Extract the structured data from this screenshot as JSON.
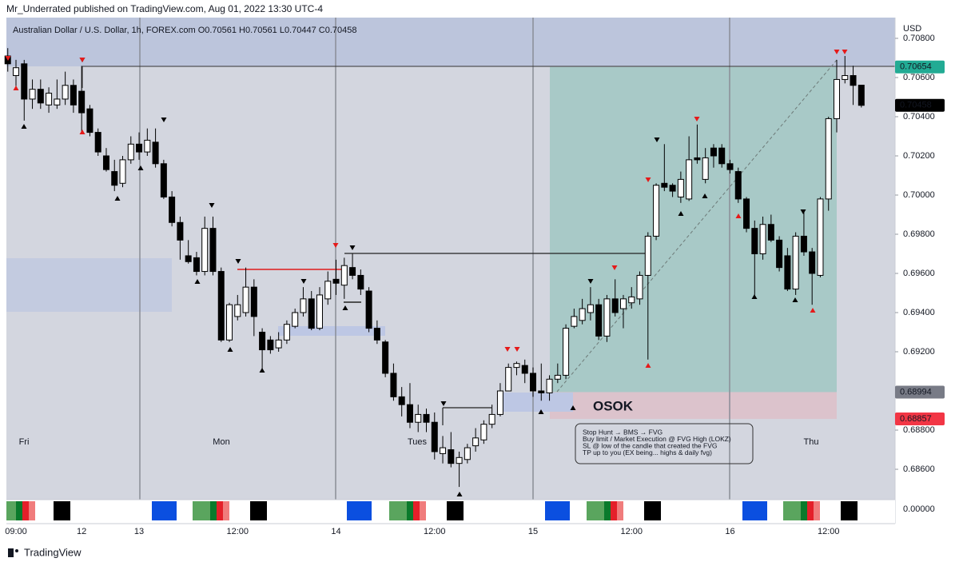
{
  "header": {
    "publisher": "Mr_Underrated published on TradingView.com, Aug 01, 2022 13:30 UTC-4"
  },
  "chart_data": {
    "type": "candlestick",
    "title": "Australian Dollar / U.S. Dollar, 1h, FOREX.com  O0.70561  H0.70561  L0.70447  C0.70458",
    "currency": "USD",
    "categories": [
      null,
      "09:00",
      null,
      null,
      null,
      null,
      null,
      null,
      null,
      "12",
      null,
      null,
      null,
      null,
      null,
      null,
      "13",
      null,
      null,
      null,
      null,
      null,
      null,
      null,
      null,
      null,
      null,
      null,
      "12:00",
      null,
      null,
      null,
      null,
      null,
      null,
      null,
      null,
      null,
      null,
      null,
      "14",
      null,
      null,
      null,
      null,
      null,
      null,
      null,
      null,
      null,
      null,
      null,
      "12:00",
      null,
      null,
      null,
      null,
      null,
      null,
      null,
      null,
      null,
      null,
      null,
      "15",
      null,
      null,
      null,
      null,
      null,
      null,
      null,
      null,
      null,
      null,
      null,
      "12:00",
      null,
      null,
      null,
      null,
      null,
      null,
      null,
      null,
      null,
      null,
      null,
      "16",
      null,
      null,
      null,
      null,
      null,
      null,
      null,
      null,
      null,
      null,
      null,
      "12:00",
      null,
      null,
      null,
      null
    ],
    "open": [
      0.7071,
      0.7061,
      0.7067,
      0.7049,
      0.7054,
      0.7046,
      0.7046,
      0.7049,
      0.7056,
      0.7053,
      0.7044,
      0.7032,
      0.702,
      0.7012,
      0.7006,
      0.7018,
      0.7026,
      0.7022,
      0.7027,
      0.7016,
      0.6999,
      0.6986,
      0.6969,
      0.6968,
      0.6961,
      0.6983,
      0.6961,
      0.6926,
      0.6938,
      0.694,
      0.6953,
      0.693,
      0.6926,
      0.6922,
      0.6926,
      0.6933,
      0.694,
      0.6947,
      0.6932,
      0.6947,
      0.6957,
      0.6954,
      0.6963,
      0.6959,
      0.6951,
      0.6932,
      0.6925,
      0.6909,
      0.6897,
      0.6893,
      0.6884,
      0.6888,
      0.6884,
      0.6868,
      0.687,
      0.6863,
      0.6865,
      0.6872,
      0.6875,
      0.6883,
      0.6888,
      0.69,
      0.6912,
      0.6913,
      0.6909,
      0.69,
      0.6899,
      0.6906,
      0.6908,
      0.6933,
      0.6936,
      0.694,
      0.6944,
      0.6928,
      0.6947,
      0.6942,
      0.6945,
      0.6947,
      0.6959,
      0.6979,
      0.7006,
      0.7005,
      0.6999,
      0.6998,
      0.7019,
      0.7008,
      0.7024,
      0.7024,
      0.7016,
      0.7012,
      0.6998,
      0.6983,
      0.697,
      0.6985,
      0.6977,
      0.6969,
      0.6952,
      0.6979,
      0.6971,
      0.6959,
      0.6998,
      0.7039,
      0.7059,
      0.7061,
      0.70561
    ],
    "high": [
      0.7075,
      0.7069,
      0.7069,
      0.7059,
      0.7059,
      0.7055,
      0.7059,
      0.7063,
      0.7059,
      0.7066,
      0.7046,
      0.7034,
      0.7024,
      0.7018,
      0.702,
      0.703,
      0.7032,
      0.7034,
      0.7034,
      0.7018,
      0.7002,
      0.6989,
      0.6977,
      0.6971,
      0.6989,
      0.6989,
      0.6963,
      0.6945,
      0.6949,
      0.6963,
      0.6957,
      0.6932,
      0.6928,
      0.693,
      0.6936,
      0.6942,
      0.6953,
      0.6951,
      0.6953,
      0.6961,
      0.6967,
      0.6968,
      0.697,
      0.6962,
      0.6953,
      0.6936,
      0.6926,
      0.6914,
      0.6902,
      0.6904,
      0.6893,
      0.6891,
      0.6889,
      0.6877,
      0.6879,
      0.6869,
      0.6873,
      0.6881,
      0.6885,
      0.6893,
      0.6904,
      0.6914,
      0.6915,
      0.6916,
      0.6912,
      0.6914,
      0.6908,
      0.6914,
      0.6934,
      0.6942,
      0.6947,
      0.6953,
      0.6947,
      0.6949,
      0.6957,
      0.6949,
      0.6953,
      0.6961,
      0.6981,
      0.7006,
      0.7026,
      0.7006,
      0.7012,
      0.703,
      0.7036,
      0.7024,
      0.7026,
      0.7026,
      0.7018,
      0.7014,
      0.6999,
      0.6987,
      0.6989,
      0.699,
      0.6979,
      0.6973,
      0.6981,
      0.6992,
      0.6973,
      0.6999,
      0.704,
      0.7069,
      0.7071,
      0.7066,
      0.70561
    ],
    "low": [
      0.7063,
      0.7055,
      0.7038,
      0.7044,
      0.7044,
      0.7042,
      0.7044,
      0.7046,
      0.7042,
      0.7032,
      0.703,
      0.702,
      0.7012,
      0.7002,
      0.7004,
      0.7016,
      0.7018,
      0.702,
      0.7014,
      0.6998,
      0.6984,
      0.6967,
      0.6965,
      0.6959,
      0.6959,
      0.6959,
      0.6925,
      0.6925,
      0.6936,
      0.6938,
      0.6928,
      0.6911,
      0.6919,
      0.692,
      0.6924,
      0.6932,
      0.6938,
      0.6931,
      0.6931,
      0.6944,
      0.6949,
      0.6947,
      0.6957,
      0.6949,
      0.693,
      0.6924,
      0.6907,
      0.6895,
      0.6887,
      0.6881,
      0.6879,
      0.6879,
      0.6865,
      0.6863,
      0.6861,
      0.6851,
      0.6863,
      0.6869,
      0.6873,
      0.6881,
      0.6887,
      0.69,
      0.6908,
      0.6904,
      0.6897,
      0.6895,
      0.6895,
      0.6904,
      0.6906,
      0.6932,
      0.6934,
      0.6936,
      0.6926,
      0.6925,
      0.6938,
      0.6932,
      0.6942,
      0.6944,
      0.6916,
      0.6977,
      0.7002,
      0.6999,
      0.6996,
      0.6997,
      0.7016,
      0.7006,
      0.7014,
      0.7014,
      0.7011,
      0.6996,
      0.6981,
      0.6949,
      0.6967,
      0.6976,
      0.6961,
      0.6951,
      0.6949,
      0.6969,
      0.6944,
      0.6958,
      0.6992,
      0.7032,
      0.7057,
      0.7046,
      0.70447
    ],
    "close": [
      0.7067,
      0.7065,
      0.7049,
      0.7054,
      0.7047,
      0.7052,
      0.7049,
      0.7056,
      0.7046,
      0.7042,
      0.7032,
      0.7022,
      0.7013,
      0.7005,
      0.7018,
      0.7026,
      0.7022,
      0.7028,
      0.7016,
      0.6999,
      0.6986,
      0.6977,
      0.6966,
      0.6961,
      0.6983,
      0.6961,
      0.6926,
      0.6944,
      0.6944,
      0.6953,
      0.6938,
      0.6921,
      0.6921,
      0.6926,
      0.6934,
      0.694,
      0.6947,
      0.6932,
      0.6949,
      0.6956,
      0.6955,
      0.6964,
      0.6959,
      0.6952,
      0.6932,
      0.6926,
      0.6909,
      0.6897,
      0.6893,
      0.6884,
      0.6888,
      0.6884,
      0.6869,
      0.6871,
      0.6863,
      0.6866,
      0.6871,
      0.6876,
      0.6883,
      0.6888,
      0.69,
      0.6912,
      0.6914,
      0.6909,
      0.69,
      0.6899,
      0.6906,
      0.6908,
      0.6932,
      0.6938,
      0.6942,
      0.6944,
      0.6928,
      0.6947,
      0.694,
      0.6947,
      0.6948,
      0.6959,
      0.6979,
      0.7005,
      0.7004,
      0.7002,
      0.7008,
      0.7018,
      0.7018,
      0.7019,
      0.702,
      0.7016,
      0.7013,
      0.6998,
      0.6983,
      0.697,
      0.6985,
      0.6977,
      0.6963,
      0.6952,
      0.6979,
      0.6971,
      0.696,
      0.6998,
      0.7039,
      0.7059,
      0.7061,
      0.7056,
      0.70458
    ],
    "up_color": "#ffffff",
    "down_color": "#000000",
    "ylim": [
      0.68445,
      0.70906
    ],
    "yticks": [
      {
        "value": 0.708,
        "label": "0.70800"
      },
      {
        "value": 0.706,
        "label": "0.70600"
      },
      {
        "value": 0.704,
        "label": "0.70400"
      },
      {
        "value": 0.702,
        "label": "0.70200"
      },
      {
        "value": 0.7,
        "label": "0.70000"
      },
      {
        "value": 0.698,
        "label": "0.69800"
      },
      {
        "value": 0.696,
        "label": "0.69600"
      },
      {
        "value": 0.694,
        "label": "0.69400"
      },
      {
        "value": 0.692,
        "label": "0.69200"
      },
      {
        "value": 0.69,
        "label": "0.69000"
      },
      {
        "value": 0.688,
        "label": "0.68800"
      },
      {
        "value": 0.686,
        "label": "0.68600"
      }
    ],
    "price_labels": [
      {
        "value": 0.70654,
        "color": "#22ab94"
      },
      {
        "value": 0.70458,
        "color": "#000000"
      },
      {
        "value": 0.68994,
        "color": "#787b86"
      },
      {
        "value": 0.68857,
        "color": "#f23645"
      }
    ],
    "session_labels": [
      "Fri",
      "Mon",
      "Tues",
      "Thu"
    ],
    "indicator_label": "0.00000",
    "annotation_title": "OSOK",
    "annotation_lines": [
      "Stop Hunt → BMS → FVG",
      "Buy limit / Market Execution @ FVG High (LOKZ)",
      "SL @ low of the candle that created the FVG",
      "TP up to you (EX being... highs & daily fvg)"
    ]
  },
  "footer": {
    "brand": "TradingView"
  }
}
